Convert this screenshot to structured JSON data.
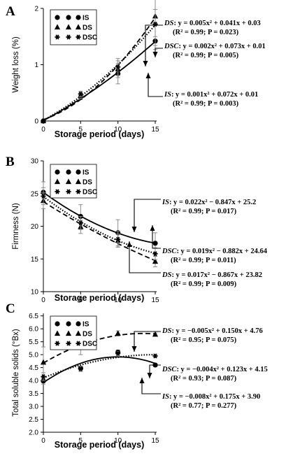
{
  "colors": {
    "axis": "#000000",
    "curve": "#000000",
    "error_bar": "#8a8a8a"
  },
  "chart_data": [
    {
      "type": "line",
      "panel": "A",
      "ylabel": "Weight loss (%)",
      "xlabel": "Storage period (days)",
      "x": [
        0,
        5,
        10,
        15
      ],
      "xlim": [
        0,
        15
      ],
      "ylim": [
        0,
        2
      ],
      "xticks": [
        "0",
        "5",
        "10",
        "15"
      ],
      "yticks": [
        "0",
        "1",
        "2"
      ],
      "legend": [
        "IS",
        "DS",
        "DSC"
      ],
      "legend_position": "top-left",
      "series": [
        {
          "name": "IS",
          "marker": "circle",
          "line": "solid",
          "values": [
            0,
            0.42,
            0.84,
            1.42
          ],
          "errors": [
            0,
            0.04,
            0.18,
            0.08
          ]
        },
        {
          "name": "DS",
          "marker": "triangle",
          "line": "dashed",
          "values": [
            0,
            0.45,
            0.92,
            1.86
          ],
          "errors": [
            0,
            0.05,
            0.15,
            0.12
          ]
        },
        {
          "name": "DSC",
          "marker": "asterisk",
          "line": "dotted",
          "values": [
            0,
            0.48,
            0.96,
            1.72
          ],
          "errors": [
            0,
            0.05,
            0.15,
            0.45
          ]
        }
      ],
      "equations": [
        {
          "name": "DS",
          "formula": ": y = 0.005x² + 0.041x + 0.03",
          "stats": "(R² = 0.99; P = 0.023)",
          "target": [
            14.3,
            1.7
          ]
        },
        {
          "name": "DSC",
          "formula": ": y = 0.002x² + 0.073x + 0.01",
          "stats": "(R² = 0.99; P = 0.005)",
          "target": [
            15,
            1.75
          ]
        },
        {
          "name": "IS",
          "formula": ": y = 0.001x² + 0.072x + 0.01",
          "stats": "(R² = 0.99; P = 0.003)",
          "target": [
            14.3,
            1.35
          ]
        }
      ]
    },
    {
      "type": "line",
      "panel": "B",
      "ylabel": "Firmness (N)",
      "xlabel": "Storage period (days)",
      "x": [
        0,
        5,
        10,
        15
      ],
      "xlim": [
        0,
        15
      ],
      "ylim": [
        10,
        30
      ],
      "xticks": [
        "0",
        "5",
        "10",
        "15"
      ],
      "yticks": [
        "10",
        "15",
        "20",
        "25",
        "30"
      ],
      "legend": [
        "IS",
        "DS",
        "DSC"
      ],
      "legend_position": "top-left",
      "series": [
        {
          "name": "IS",
          "marker": "circle",
          "line": "solid",
          "values": [
            25.2,
            21.5,
            19.0,
            17.4
          ],
          "errors": [
            1.6,
            1.8,
            2.0,
            1.6
          ]
        },
        {
          "name": "DS",
          "marker": "triangle",
          "line": "dashed",
          "values": [
            23.9,
            19.9,
            17.8,
            14.6
          ],
          "errors": [
            1.2,
            1.0,
            1.0,
            0.8
          ]
        },
        {
          "name": "DSC",
          "marker": "asterisk",
          "line": "dotted",
          "values": [
            24.6,
            20.5,
            18.0,
            15.8
          ],
          "errors": [
            1.3,
            1.0,
            1.2,
            0.9
          ]
        }
      ],
      "equations": [
        {
          "name": "IS",
          "formula": ": y = 0.022x² − 0.847x + 25.2",
          "stats": "(R² = 0.99; P = 0.017)",
          "target": [
            12,
            18.3
          ]
        },
        {
          "name": "DSC",
          "formula": ": y = 0.019x² − 0.882x + 24.64",
          "stats": "(R² = 0.99; P = 0.011)",
          "target": [
            15,
            16.0
          ]
        },
        {
          "name": "DS",
          "formula": ": y = 0.017x² − 0.867x + 23.82",
          "stats": "(R² = 0.99; P = 0.009)",
          "target": [
            11,
            17.5
          ]
        }
      ]
    },
    {
      "type": "line",
      "panel": "C",
      "ylabel": "Total soluble solids (°Bx)",
      "xlabel": "Storage period (days)",
      "x": [
        0,
        5,
        10,
        15
      ],
      "xlim": [
        0,
        15
      ],
      "ylim": [
        2,
        6.6
      ],
      "xticks": [
        "0",
        "5",
        "10",
        "15"
      ],
      "yticks": [
        "2.0",
        "2.5",
        "3.0",
        "3.5",
        "4.0",
        "4.5",
        "5.0",
        "5.5",
        "6.0",
        "6.5"
      ],
      "legend": [
        "IS",
        "DS",
        "DSC"
      ],
      "legend_position": "top-left",
      "series": [
        {
          "name": "IS",
          "marker": "circle",
          "line": "solid",
          "values": [
            3.98,
            4.48,
            5.1,
            4.6
          ],
          "errors": [
            0.12,
            0.08,
            0.08,
            0.06
          ]
        },
        {
          "name": "DS",
          "marker": "triangle",
          "line": "dashed",
          "values": [
            4.7,
            5.3,
            5.82,
            5.78
          ],
          "errors": [
            0.6,
            0.3,
            0.1,
            0.06
          ]
        },
        {
          "name": "DSC",
          "marker": "asterisk",
          "line": "dotted",
          "values": [
            4.15,
            4.45,
            5.05,
            4.95
          ],
          "errors": [
            0.15,
            0.1,
            0.08,
            0.06
          ]
        }
      ],
      "equations": [
        {
          "name": "DS",
          "formula": ": y = −0.005x² + 0.150x + 4.76",
          "stats": "(R² = 0.95; P = 0.075)",
          "target": [
            11.5,
            5.9
          ]
        },
        {
          "name": "DSC",
          "formula": ": y = −0.004x² + 0.123x + 4.15",
          "stats": "(R² = 0.93; P = 0.087)",
          "target": [
            14.3,
            5.0
          ]
        },
        {
          "name": "IS",
          "formula": ": y = −0.008x² + 0.175x + 3.90",
          "stats": "(R² = 0.77; P = 0.277)",
          "target": [
            13.5,
            4.85
          ]
        }
      ]
    }
  ]
}
